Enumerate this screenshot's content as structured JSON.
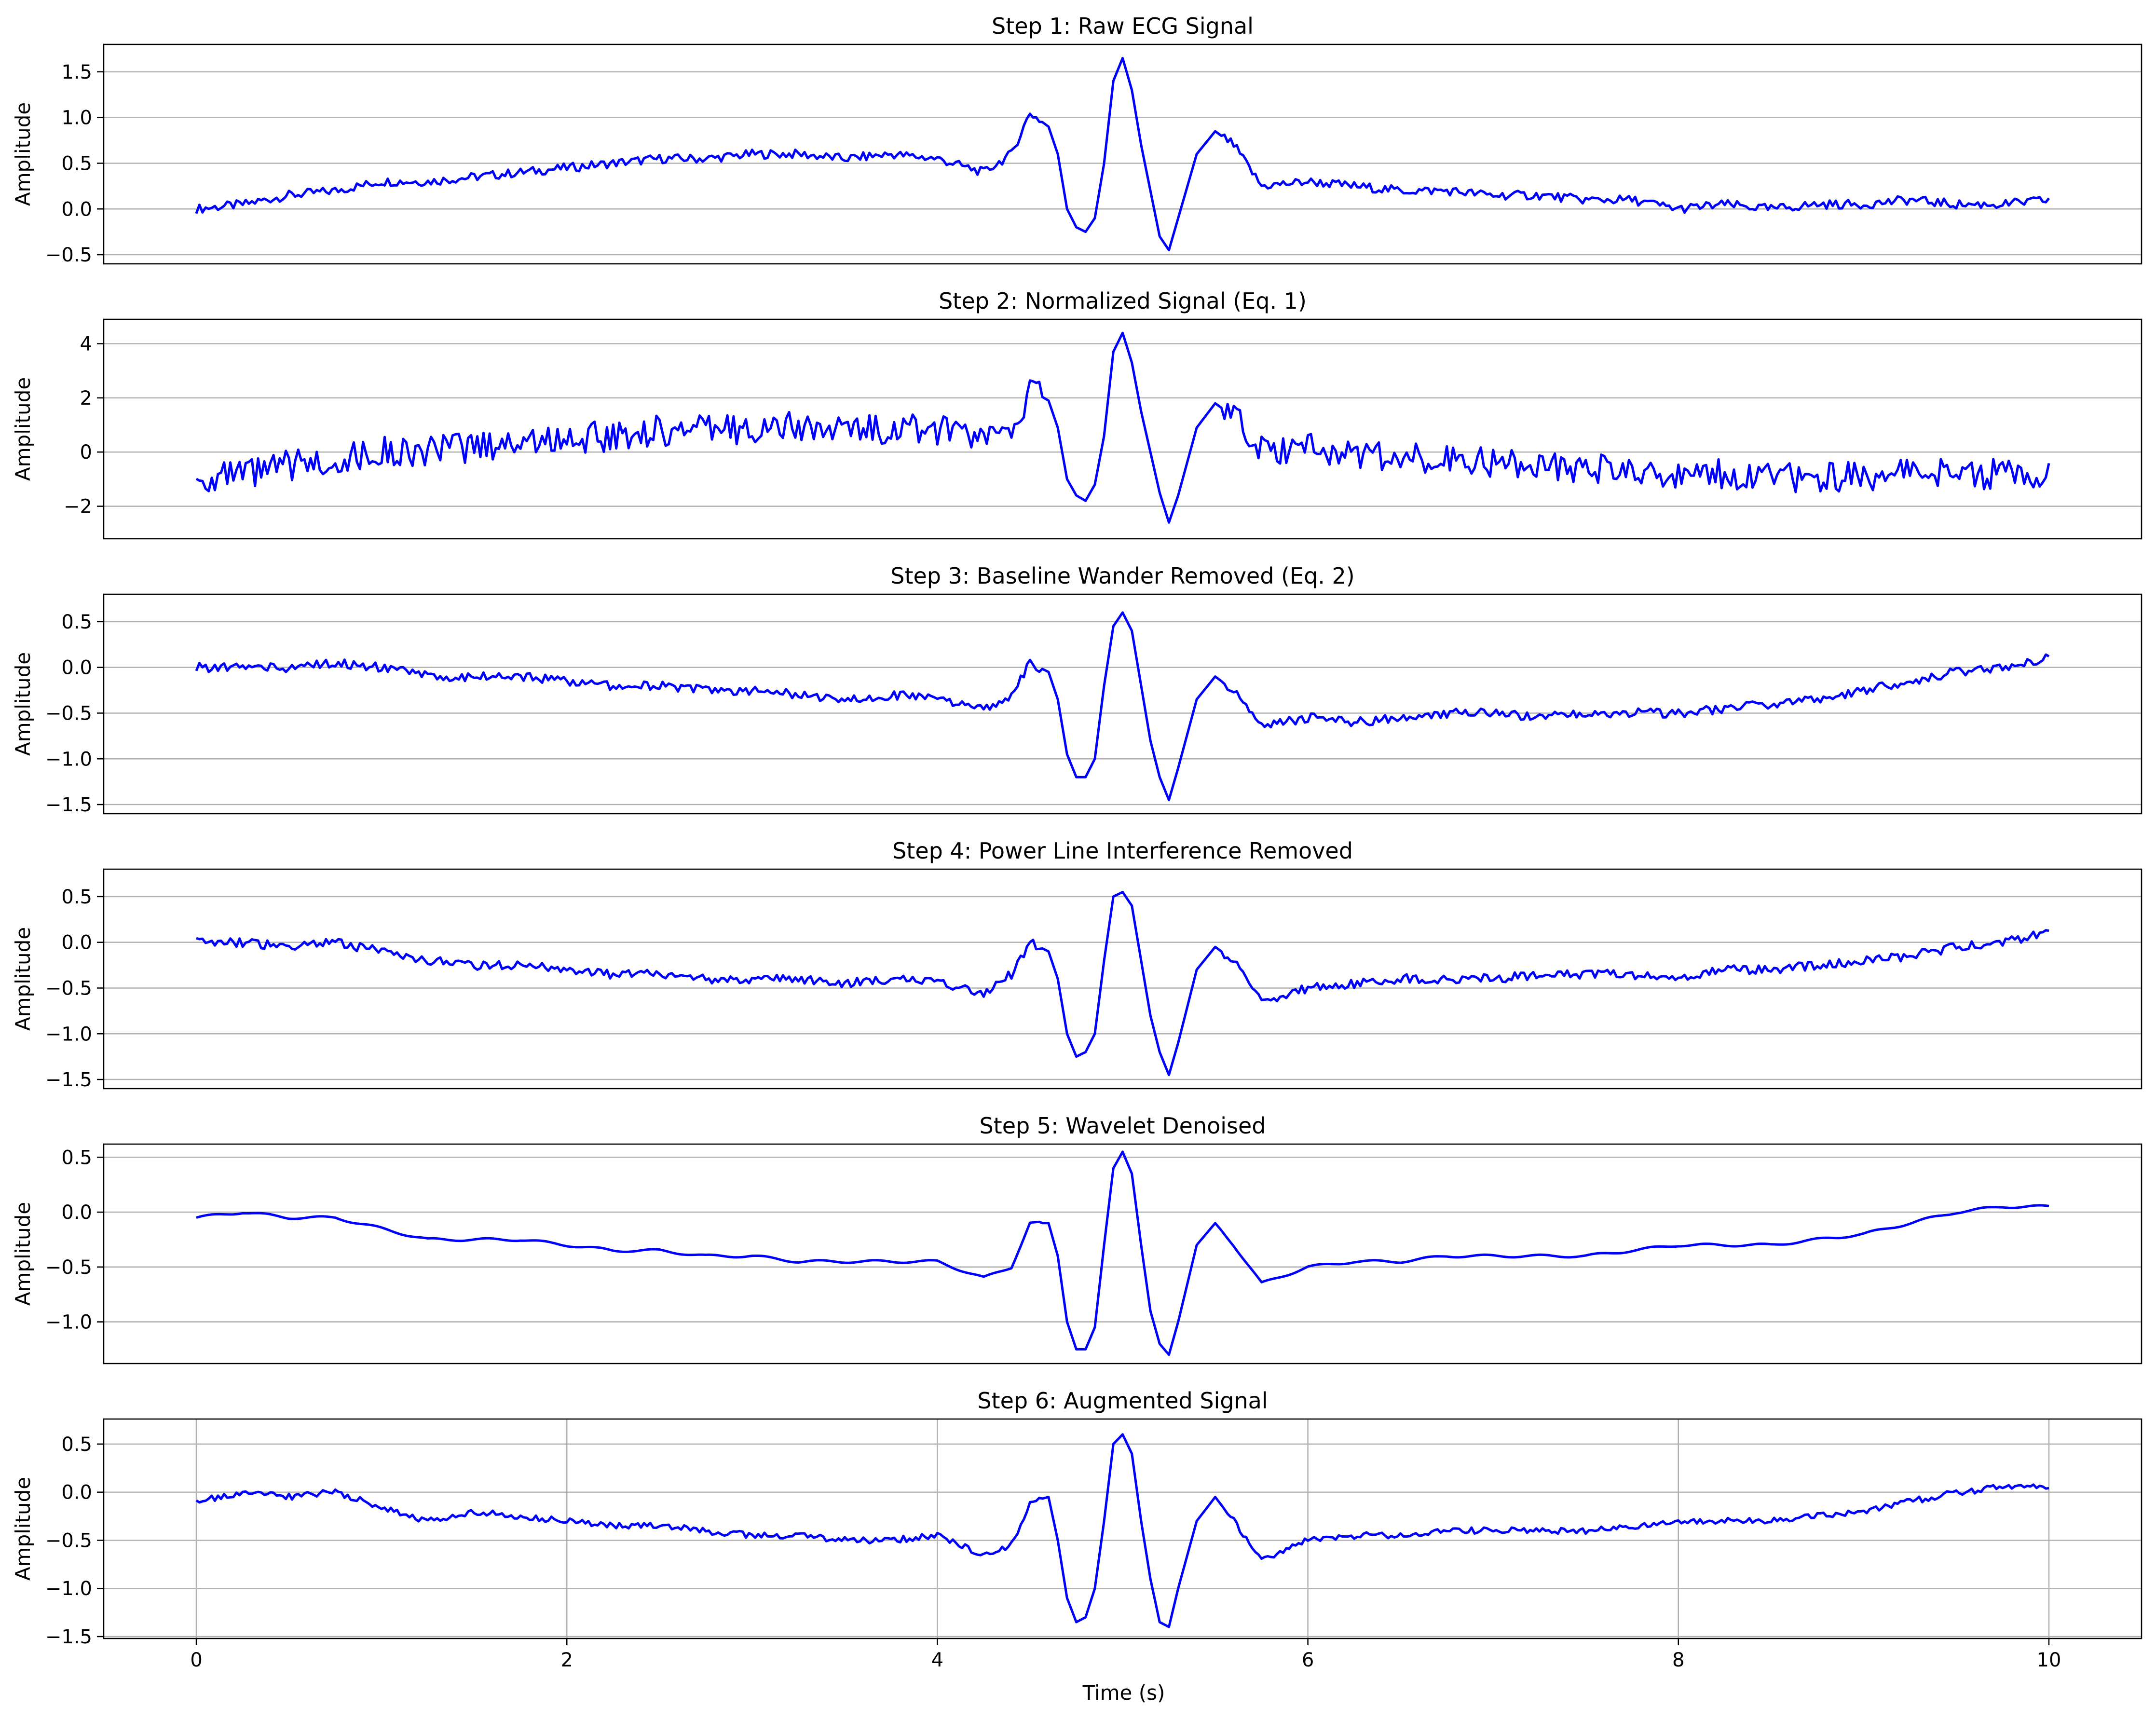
{
  "figure": {
    "xlabel": "Time (s)",
    "line_color": "#0000ff",
    "grid_color": "#b0b0b0"
  },
  "chart_data": [
    {
      "type": "line",
      "title": "Step 1: Raw ECG Signal",
      "ylabel": "Amplitude",
      "xlim": [
        -0.5,
        10.5
      ],
      "ylim": [
        -0.6,
        1.8
      ],
      "yticks": [
        -0.5,
        0.0,
        0.5,
        1.0,
        1.5
      ],
      "ytick_labels": [
        "−0.5",
        "0.0",
        "0.5",
        "1.0",
        "1.5"
      ],
      "grid": "horizontal",
      "x_axis_labels_shown": false,
      "series": [
        {
          "x": [
            0,
            0.25,
            0.5,
            0.75,
            1,
            1.25,
            1.5,
            1.75,
            2,
            2.25,
            2.5,
            2.75,
            3,
            3.25,
            3.5,
            3.75,
            4,
            4.25,
            4.4,
            4.5,
            4.6,
            4.65,
            4.7,
            4.75,
            4.8,
            4.85,
            4.9,
            4.95,
            5,
            5.05,
            5.1,
            5.15,
            5.2,
            5.25,
            5.3,
            5.4,
            5.5,
            5.6,
            5.75,
            6,
            6.25,
            6.5,
            6.75,
            7,
            7.25,
            7.5,
            7.75,
            8,
            8.25,
            8.5,
            8.75,
            9,
            9.25,
            9.5,
            9.75,
            10
          ],
          "y": [
            0.0,
            0.05,
            0.15,
            0.2,
            0.3,
            0.3,
            0.35,
            0.4,
            0.45,
            0.5,
            0.55,
            0.55,
            0.6,
            0.6,
            0.55,
            0.6,
            0.55,
            0.4,
            0.6,
            1.05,
            0.9,
            0.6,
            0.0,
            -0.2,
            -0.25,
            -0.1,
            0.5,
            1.4,
            1.65,
            1.3,
            0.7,
            0.2,
            -0.3,
            -0.45,
            -0.1,
            0.6,
            0.85,
            0.7,
            0.25,
            0.3,
            0.25,
            0.2,
            0.2,
            0.15,
            0.15,
            0.1,
            0.1,
            0.0,
            0.05,
            0.0,
            0.05,
            0.05,
            0.1,
            0.05,
            0.05,
            0.1
          ]
        }
      ]
    },
    {
      "type": "line",
      "title": "Step 2: Normalized Signal (Eq. 1)",
      "ylabel": "Amplitude",
      "xlim": [
        -0.5,
        10.5
      ],
      "ylim": [
        -3.2,
        4.9
      ],
      "yticks": [
        -2,
        0,
        2,
        4
      ],
      "ytick_labels": [
        "−2",
        "0",
        "2",
        "4"
      ],
      "grid": "horizontal",
      "x_axis_labels_shown": false,
      "series": [
        {
          "x": [
            0,
            0.25,
            0.5,
            0.75,
            1,
            1.25,
            1.5,
            1.75,
            2,
            2.25,
            2.5,
            2.75,
            3,
            3.25,
            3.5,
            3.75,
            4,
            4.25,
            4.4,
            4.5,
            4.6,
            4.65,
            4.7,
            4.75,
            4.8,
            4.85,
            4.9,
            4.95,
            5,
            5.05,
            5.1,
            5.15,
            5.2,
            5.25,
            5.3,
            5.4,
            5.5,
            5.6,
            5.75,
            6,
            6.25,
            6.5,
            6.75,
            7,
            7.25,
            7.5,
            7.75,
            8,
            8.25,
            8.5,
            8.75,
            9,
            9.25,
            9.5,
            9.75,
            10
          ],
          "y": [
            -1.0,
            -0.9,
            -0.5,
            -0.3,
            0.0,
            0.0,
            0.2,
            0.4,
            0.5,
            0.6,
            0.8,
            0.8,
            0.9,
            0.9,
            0.8,
            0.9,
            0.8,
            0.4,
            0.9,
            2.3,
            1.9,
            0.9,
            -1.0,
            -1.6,
            -1.8,
            -1.2,
            0.6,
            3.7,
            4.4,
            3.3,
            1.5,
            0.0,
            -1.5,
            -2.6,
            -1.6,
            0.9,
            1.8,
            1.3,
            0.0,
            0.1,
            0.0,
            -0.2,
            -0.2,
            -0.4,
            -0.4,
            -0.6,
            -0.6,
            -0.9,
            -0.8,
            -1.0,
            -0.9,
            -0.9,
            -0.7,
            -0.8,
            -0.8,
            -0.7
          ]
        }
      ]
    },
    {
      "type": "line",
      "title": "Step 3: Baseline Wander Removed (Eq. 2)",
      "ylabel": "Amplitude",
      "xlim": [
        -0.5,
        10.5
      ],
      "ylim": [
        -1.6,
        0.8
      ],
      "yticks": [
        -1.5,
        -1.0,
        -0.5,
        0.0,
        0.5
      ],
      "ytick_labels": [
        "−1.5",
        "−1.0",
        "−0.5",
        "0.0",
        "0.5"
      ],
      "grid": "horizontal",
      "x_axis_labels_shown": false,
      "series": [
        {
          "x": [
            0,
            0.25,
            0.5,
            0.75,
            1,
            1.25,
            1.5,
            1.75,
            2,
            2.25,
            2.5,
            2.75,
            3,
            3.25,
            3.5,
            3.75,
            4,
            4.25,
            4.4,
            4.5,
            4.6,
            4.65,
            4.7,
            4.75,
            4.8,
            4.85,
            4.9,
            4.95,
            5,
            5.05,
            5.1,
            5.15,
            5.2,
            5.25,
            5.3,
            5.4,
            5.5,
            5.6,
            5.75,
            6,
            6.25,
            6.5,
            6.75,
            7,
            7.25,
            7.5,
            7.75,
            8,
            8.25,
            8.5,
            8.75,
            9,
            9.25,
            9.5,
            9.75,
            10
          ],
          "y": [
            0.0,
            0.0,
            0.0,
            0.05,
            0.0,
            -0.1,
            -0.1,
            -0.1,
            -0.15,
            -0.2,
            -0.2,
            -0.25,
            -0.25,
            -0.3,
            -0.35,
            -0.3,
            -0.35,
            -0.45,
            -0.3,
            0.05,
            -0.05,
            -0.35,
            -0.95,
            -1.2,
            -1.2,
            -1.0,
            -0.2,
            0.45,
            0.6,
            0.4,
            -0.2,
            -0.8,
            -1.2,
            -1.45,
            -1.1,
            -0.35,
            -0.1,
            -0.25,
            -0.65,
            -0.55,
            -0.6,
            -0.55,
            -0.5,
            -0.5,
            -0.55,
            -0.5,
            -0.5,
            -0.5,
            -0.45,
            -0.4,
            -0.35,
            -0.25,
            -0.15,
            -0.05,
            0.0,
            0.1
          ]
        }
      ]
    },
    {
      "type": "line",
      "title": "Step 4: Power Line Interference Removed",
      "ylabel": "Amplitude",
      "xlim": [
        -0.5,
        10.5
      ],
      "ylim": [
        -1.6,
        0.8
      ],
      "yticks": [
        -1.5,
        -1.0,
        -0.5,
        0.0,
        0.5
      ],
      "ytick_labels": [
        "−1.5",
        "−1.0",
        "−0.5",
        "0.0",
        "0.5"
      ],
      "grid": "horizontal",
      "x_axis_labels_shown": false,
      "series": [
        {
          "x": [
            0,
            0.25,
            0.5,
            0.75,
            1,
            1.25,
            1.5,
            1.75,
            2,
            2.25,
            2.5,
            2.75,
            3,
            3.25,
            3.5,
            3.75,
            4,
            4.25,
            4.4,
            4.5,
            4.6,
            4.65,
            4.7,
            4.75,
            4.8,
            4.85,
            4.9,
            4.95,
            5,
            5.05,
            5.1,
            5.15,
            5.2,
            5.25,
            5.3,
            5.4,
            5.5,
            5.6,
            5.75,
            6,
            6.25,
            6.5,
            6.75,
            7,
            7.25,
            7.5,
            7.75,
            8,
            8.25,
            8.5,
            8.75,
            9,
            9.25,
            9.5,
            9.75,
            10
          ],
          "y": [
            0.0,
            0.0,
            -0.05,
            0.0,
            -0.1,
            -0.2,
            -0.25,
            -0.25,
            -0.3,
            -0.35,
            -0.35,
            -0.4,
            -0.4,
            -0.4,
            -0.45,
            -0.4,
            -0.45,
            -0.55,
            -0.35,
            0.0,
            -0.1,
            -0.4,
            -1.0,
            -1.25,
            -1.2,
            -1.0,
            -0.2,
            0.5,
            0.55,
            0.4,
            -0.2,
            -0.8,
            -1.2,
            -1.45,
            -1.1,
            -0.3,
            -0.05,
            -0.2,
            -0.65,
            -0.5,
            -0.45,
            -0.4,
            -0.4,
            -0.4,
            -0.35,
            -0.35,
            -0.35,
            -0.4,
            -0.3,
            -0.3,
            -0.25,
            -0.2,
            -0.15,
            -0.05,
            0.0,
            0.1
          ]
        }
      ]
    },
    {
      "type": "line",
      "title": "Step 5: Wavelet Denoised",
      "ylabel": "Amplitude",
      "xlim": [
        -0.5,
        10.5
      ],
      "ylim": [
        -1.38,
        0.62
      ],
      "yticks": [
        -1.0,
        -0.5,
        0.0,
        0.5
      ],
      "ytick_labels": [
        "−1.0",
        "−0.5",
        "0.0",
        "0.5"
      ],
      "grid": "horizontal",
      "x_axis_labels_shown": false,
      "series": [
        {
          "x": [
            0,
            0.25,
            0.5,
            0.75,
            1,
            1.25,
            1.5,
            1.75,
            2,
            2.25,
            2.5,
            2.75,
            3,
            3.25,
            3.5,
            3.75,
            4,
            4.25,
            4.4,
            4.5,
            4.6,
            4.65,
            4.7,
            4.75,
            4.8,
            4.85,
            4.9,
            4.95,
            5,
            5.05,
            5.1,
            5.15,
            5.2,
            5.25,
            5.3,
            5.4,
            5.5,
            5.6,
            5.75,
            6,
            6.25,
            6.5,
            6.75,
            7,
            7.25,
            7.5,
            7.75,
            8,
            8.25,
            8.5,
            8.75,
            9,
            9.25,
            9.5,
            9.75,
            10
          ],
          "y": [
            -0.05,
            0.0,
            -0.05,
            -0.05,
            -0.15,
            -0.25,
            -0.25,
            -0.25,
            -0.3,
            -0.35,
            -0.35,
            -0.4,
            -0.4,
            -0.45,
            -0.45,
            -0.45,
            -0.45,
            -0.6,
            -0.5,
            -0.1,
            -0.1,
            -0.4,
            -1.0,
            -1.25,
            -1.25,
            -1.05,
            -0.3,
            0.4,
            0.55,
            0.35,
            -0.3,
            -0.9,
            -1.2,
            -1.3,
            -1.0,
            -0.3,
            -0.1,
            -0.3,
            -0.65,
            -0.5,
            -0.45,
            -0.45,
            -0.4,
            -0.4,
            -0.4,
            -0.4,
            -0.35,
            -0.3,
            -0.3,
            -0.3,
            -0.25,
            -0.2,
            -0.1,
            0.0,
            0.05,
            0.05
          ]
        }
      ]
    },
    {
      "type": "line",
      "title": "Step 6: Augmented Signal",
      "ylabel": "Amplitude",
      "xlabel": "Time (s)",
      "xlim": [
        -0.5,
        10.5
      ],
      "ylim": [
        -1.52,
        0.76
      ],
      "xticks": [
        0,
        2,
        4,
        6,
        8,
        10
      ],
      "xtick_labels": [
        "0",
        "2",
        "4",
        "6",
        "8",
        "10"
      ],
      "yticks": [
        -1.5,
        -1.0,
        -0.5,
        0.0,
        0.5
      ],
      "ytick_labels": [
        "−1.5",
        "−1.0",
        "−0.5",
        "0.0",
        "0.5"
      ],
      "grid": "both",
      "x_axis_labels_shown": true,
      "series": [
        {
          "x": [
            0,
            0.25,
            0.5,
            0.75,
            1,
            1.25,
            1.5,
            1.75,
            2,
            2.25,
            2.5,
            2.75,
            3,
            3.25,
            3.5,
            3.75,
            4,
            4.25,
            4.4,
            4.5,
            4.6,
            4.65,
            4.7,
            4.75,
            4.8,
            4.85,
            4.9,
            4.95,
            5,
            5.05,
            5.1,
            5.15,
            5.2,
            5.25,
            5.3,
            5.4,
            5.5,
            5.6,
            5.75,
            6,
            6.25,
            6.5,
            6.75,
            7,
            7.25,
            7.5,
            7.75,
            8,
            8.25,
            8.5,
            8.75,
            9,
            9.25,
            9.5,
            9.75,
            10
          ],
          "y": [
            -0.1,
            0.0,
            -0.05,
            0.0,
            -0.15,
            -0.3,
            -0.2,
            -0.25,
            -0.3,
            -0.35,
            -0.35,
            -0.4,
            -0.45,
            -0.45,
            -0.5,
            -0.5,
            -0.45,
            -0.65,
            -0.55,
            -0.1,
            -0.05,
            -0.5,
            -1.1,
            -1.35,
            -1.3,
            -1.0,
            -0.3,
            0.5,
            0.6,
            0.4,
            -0.3,
            -0.9,
            -1.35,
            -1.4,
            -1.0,
            -0.3,
            -0.05,
            -0.3,
            -0.7,
            -0.5,
            -0.45,
            -0.45,
            -0.4,
            -0.4,
            -0.4,
            -0.4,
            -0.35,
            -0.3,
            -0.3,
            -0.3,
            -0.25,
            -0.2,
            -0.1,
            0.0,
            0.05,
            0.05
          ]
        }
      ]
    }
  ]
}
